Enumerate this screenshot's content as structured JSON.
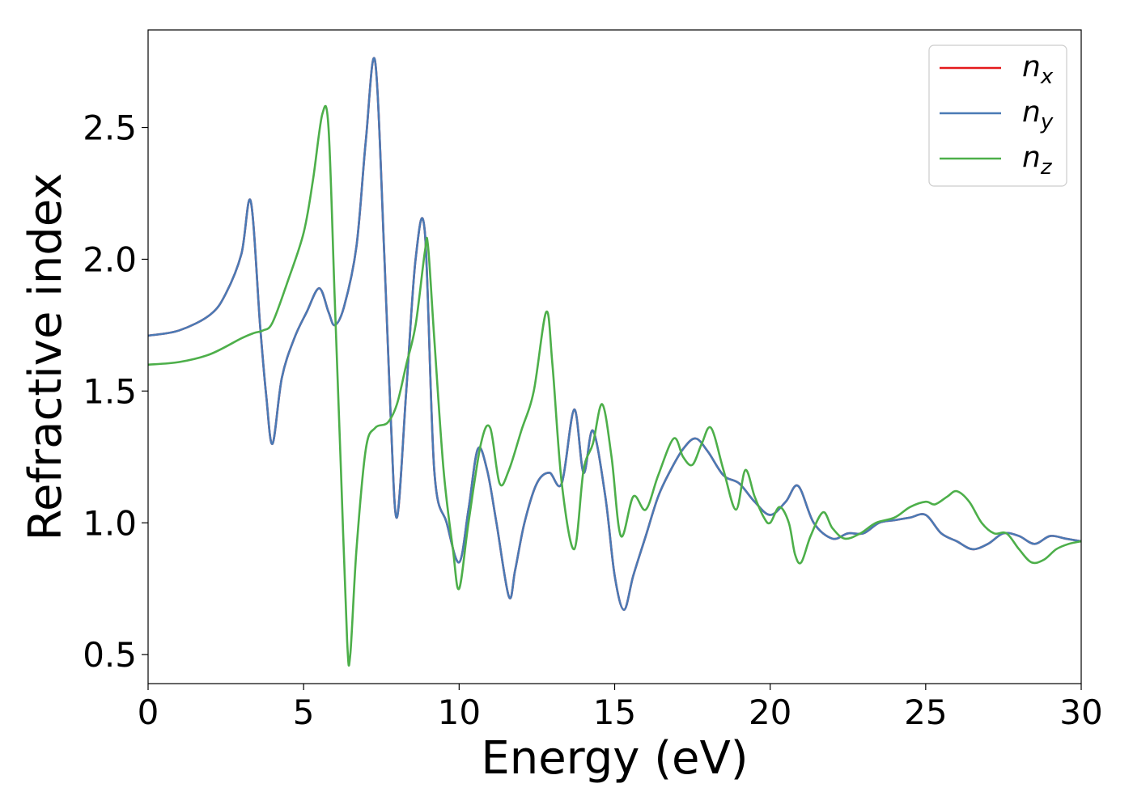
{
  "chart_data": {
    "type": "line",
    "xlabel": "Energy (eV)",
    "ylabel": "Refractive index",
    "xlim": [
      0,
      30
    ],
    "ylim": [
      0.39,
      2.87
    ],
    "xticks": [
      "0",
      "5",
      "10",
      "15",
      "20",
      "25",
      "30"
    ],
    "yticks": [
      "0.5",
      "1.0",
      "1.5",
      "2.0",
      "2.5"
    ],
    "grid": false,
    "legend_position": "top-right",
    "series": [
      {
        "name": "n_x",
        "label_main": "n",
        "label_sub": "x",
        "color": "#e41a1c",
        "x": [
          0,
          1,
          2,
          2.5,
          3,
          3.3,
          3.6,
          3.8,
          4.0,
          4.3,
          4.7,
          5.1,
          5.5,
          5.8,
          6.0,
          6.3,
          6.7,
          7.0,
          7.3,
          7.6,
          7.8,
          8.0,
          8.3,
          8.6,
          8.9,
          9.2,
          9.6,
          10.0,
          10.3,
          10.6,
          10.9,
          11.2,
          11.6,
          11.8,
          12.1,
          12.5,
          12.9,
          13.3,
          13.7,
          14.0,
          14.3,
          14.7,
          15.0,
          15.3,
          15.6,
          16.0,
          16.4,
          16.8,
          17.2,
          17.6,
          18.0,
          18.5,
          19.0,
          19.5,
          20.0,
          20.5,
          20.9,
          21.4,
          22.0,
          22.5,
          23.0,
          23.5,
          24.0,
          24.5,
          25.0,
          25.5,
          26.0,
          26.5,
          27.0,
          27.5,
          28.0,
          28.5,
          29.0,
          29.5,
          30.0
        ],
        "y": [
          1.71,
          1.73,
          1.79,
          1.87,
          2.02,
          2.22,
          1.75,
          1.48,
          1.3,
          1.55,
          1.7,
          1.8,
          1.89,
          1.8,
          1.75,
          1.82,
          2.05,
          2.45,
          2.75,
          2.0,
          1.4,
          1.02,
          1.5,
          2.0,
          2.1,
          1.2,
          1.0,
          0.85,
          1.05,
          1.28,
          1.2,
          1.0,
          0.72,
          0.82,
          1.0,
          1.15,
          1.19,
          1.15,
          1.43,
          1.19,
          1.35,
          1.1,
          0.8,
          0.67,
          0.8,
          0.95,
          1.1,
          1.2,
          1.28,
          1.32,
          1.27,
          1.18,
          1.15,
          1.08,
          1.03,
          1.08,
          1.14,
          1.0,
          0.94,
          0.96,
          0.96,
          1.0,
          1.01,
          1.02,
          1.03,
          0.96,
          0.93,
          0.9,
          0.92,
          0.96,
          0.95,
          0.92,
          0.95,
          0.94,
          0.93
        ]
      },
      {
        "name": "n_y",
        "label_main": "n",
        "label_sub": "y",
        "color": "#4a7ab5",
        "x": [
          0,
          1,
          2,
          2.5,
          3,
          3.3,
          3.6,
          3.8,
          4.0,
          4.3,
          4.7,
          5.1,
          5.5,
          5.8,
          6.0,
          6.3,
          6.7,
          7.0,
          7.3,
          7.6,
          7.8,
          8.0,
          8.3,
          8.6,
          8.9,
          9.2,
          9.6,
          10.0,
          10.3,
          10.6,
          10.9,
          11.2,
          11.6,
          11.8,
          12.1,
          12.5,
          12.9,
          13.3,
          13.7,
          14.0,
          14.3,
          14.7,
          15.0,
          15.3,
          15.6,
          16.0,
          16.4,
          16.8,
          17.2,
          17.6,
          18.0,
          18.5,
          19.0,
          19.5,
          20.0,
          20.5,
          20.9,
          21.4,
          22.0,
          22.5,
          23.0,
          23.5,
          24.0,
          24.5,
          25.0,
          25.5,
          26.0,
          26.5,
          27.0,
          27.5,
          28.0,
          28.5,
          29.0,
          29.5,
          30.0
        ],
        "y": [
          1.71,
          1.73,
          1.79,
          1.87,
          2.02,
          2.22,
          1.75,
          1.48,
          1.3,
          1.55,
          1.7,
          1.8,
          1.89,
          1.8,
          1.75,
          1.82,
          2.05,
          2.45,
          2.75,
          2.0,
          1.4,
          1.02,
          1.5,
          2.0,
          2.1,
          1.2,
          1.0,
          0.85,
          1.05,
          1.28,
          1.2,
          1.0,
          0.72,
          0.82,
          1.0,
          1.15,
          1.19,
          1.15,
          1.43,
          1.19,
          1.35,
          1.1,
          0.8,
          0.67,
          0.8,
          0.95,
          1.1,
          1.2,
          1.28,
          1.32,
          1.27,
          1.18,
          1.15,
          1.08,
          1.03,
          1.08,
          1.14,
          1.0,
          0.94,
          0.96,
          0.96,
          1.0,
          1.01,
          1.02,
          1.03,
          0.96,
          0.93,
          0.9,
          0.92,
          0.96,
          0.95,
          0.92,
          0.95,
          0.94,
          0.93
        ]
      },
      {
        "name": "n_z",
        "label_main": "n",
        "label_sub": "z",
        "color": "#4daf4a",
        "x": [
          0,
          1,
          2,
          3,
          3.4,
          3.7,
          4.0,
          4.5,
          5.0,
          5.3,
          5.6,
          5.8,
          6.0,
          6.2,
          6.4,
          6.5,
          6.7,
          7.0,
          7.3,
          7.7,
          8.0,
          8.3,
          8.6,
          8.9,
          9.0,
          9.2,
          9.5,
          9.8,
          10.0,
          10.3,
          10.7,
          11.0,
          11.3,
          11.6,
          12.0,
          12.4,
          12.8,
          13.0,
          13.3,
          13.7,
          14.0,
          14.3,
          14.6,
          14.9,
          15.2,
          15.6,
          16.0,
          16.4,
          16.9,
          17.2,
          17.5,
          17.8,
          18.1,
          18.5,
          18.9,
          19.2,
          19.5,
          19.8,
          20.0,
          20.3,
          20.6,
          20.8,
          21.0,
          21.3,
          21.7,
          22.0,
          22.4,
          22.9,
          23.4,
          24.0,
          24.5,
          25.0,
          25.3,
          25.7,
          26.0,
          26.4,
          26.8,
          27.2,
          27.6,
          28.0,
          28.4,
          28.8,
          29.2,
          29.6,
          30.0
        ],
        "y": [
          1.6,
          1.61,
          1.64,
          1.7,
          1.72,
          1.73,
          1.76,
          1.92,
          2.1,
          2.3,
          2.55,
          2.5,
          1.85,
          1.2,
          0.55,
          0.5,
          0.9,
          1.28,
          1.36,
          1.38,
          1.45,
          1.6,
          1.75,
          2.03,
          2.05,
          1.7,
          1.2,
          0.9,
          0.75,
          1.0,
          1.3,
          1.36,
          1.15,
          1.2,
          1.35,
          1.5,
          1.8,
          1.6,
          1.15,
          0.9,
          1.2,
          1.3,
          1.45,
          1.25,
          0.95,
          1.1,
          1.05,
          1.18,
          1.32,
          1.25,
          1.22,
          1.3,
          1.36,
          1.2,
          1.05,
          1.2,
          1.1,
          1.02,
          1.0,
          1.06,
          1.0,
          0.88,
          0.85,
          0.95,
          1.04,
          0.98,
          0.94,
          0.96,
          1.0,
          1.02,
          1.06,
          1.08,
          1.07,
          1.1,
          1.12,
          1.08,
          1.0,
          0.96,
          0.96,
          0.9,
          0.85,
          0.86,
          0.9,
          0.92,
          0.93
        ]
      }
    ]
  }
}
